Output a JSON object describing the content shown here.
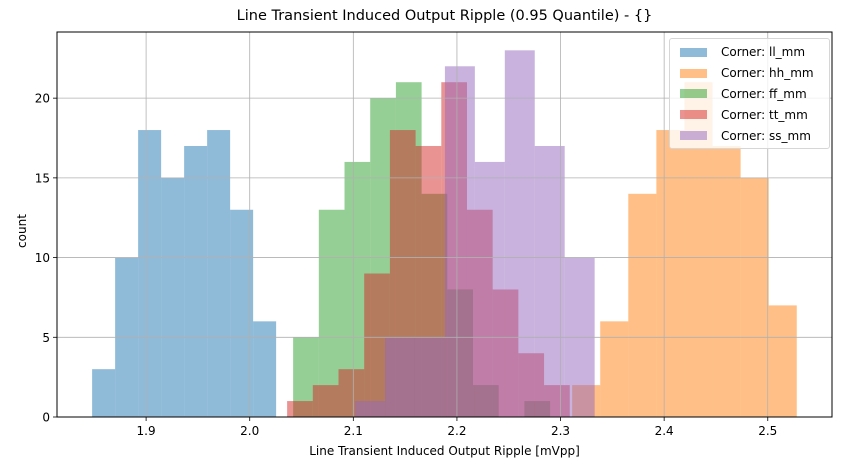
{
  "chart_data": {
    "type": "bar",
    "subtype": "overlaid-histogram",
    "title": "Line Transient Induced Output Ripple (0.95 Quantile) - {}",
    "xlabel": "Line Transient Induced Output Ripple [mVpp]",
    "ylabel": "count",
    "xlim": [
      1.814,
      2.562
    ],
    "ylim": [
      0,
      24.15
    ],
    "xticks": [
      1.9,
      2.0,
      2.1,
      2.2,
      2.3,
      2.4,
      2.5
    ],
    "xtick_labels": [
      "1.9",
      "2.0",
      "2.1",
      "2.2",
      "2.3",
      "2.4",
      "2.5"
    ],
    "yticks": [
      0,
      5,
      10,
      15,
      20
    ],
    "ytick_labels": [
      "0",
      "5",
      "10",
      "15",
      "20"
    ],
    "grid": true,
    "legend_position": "upper right",
    "alpha": 0.5,
    "series": [
      {
        "name": "Corner: ll_mm",
        "color": "#1f77b4",
        "bin_start": 1.8479,
        "bin_width": 0.0222,
        "values": [
          3,
          10,
          18,
          15,
          17,
          18,
          13,
          6
        ]
      },
      {
        "name": "Corner: hh_mm",
        "color": "#ff7f0e",
        "bin_start": 2.3112,
        "bin_width": 0.0271,
        "values": [
          2,
          6,
          14,
          18,
          21,
          17,
          15,
          7
        ]
      },
      {
        "name": "Corner: ff_mm",
        "color": "#2ca02c",
        "bin_start": 2.0419,
        "bin_width": 0.0248,
        "values": [
          5,
          13,
          16,
          20,
          21,
          14,
          8,
          2,
          0,
          1
        ]
      },
      {
        "name": "Corner: tt_mm",
        "color": "#d62728",
        "bin_start": 2.0361,
        "bin_width": 0.0248,
        "values": [
          1,
          2,
          3,
          9,
          18,
          17,
          21,
          13,
          8,
          4,
          2
        ]
      },
      {
        "name": "Corner: ss_mm",
        "color": "#9467bd",
        "bin_start": 2.1017,
        "bin_width": 0.0289,
        "values": [
          1,
          5,
          5,
          22,
          16,
          23,
          17,
          10
        ]
      }
    ]
  },
  "legend": {
    "items": [
      {
        "label": "Corner: ll_mm",
        "color": "#1f77b4"
      },
      {
        "label": "Corner: hh_mm",
        "color": "#ff7f0e"
      },
      {
        "label": "Corner: ff_mm",
        "color": "#2ca02c"
      },
      {
        "label": "Corner: tt_mm",
        "color": "#d62728"
      },
      {
        "label": "Corner: ss_mm",
        "color": "#9467bd"
      }
    ]
  }
}
